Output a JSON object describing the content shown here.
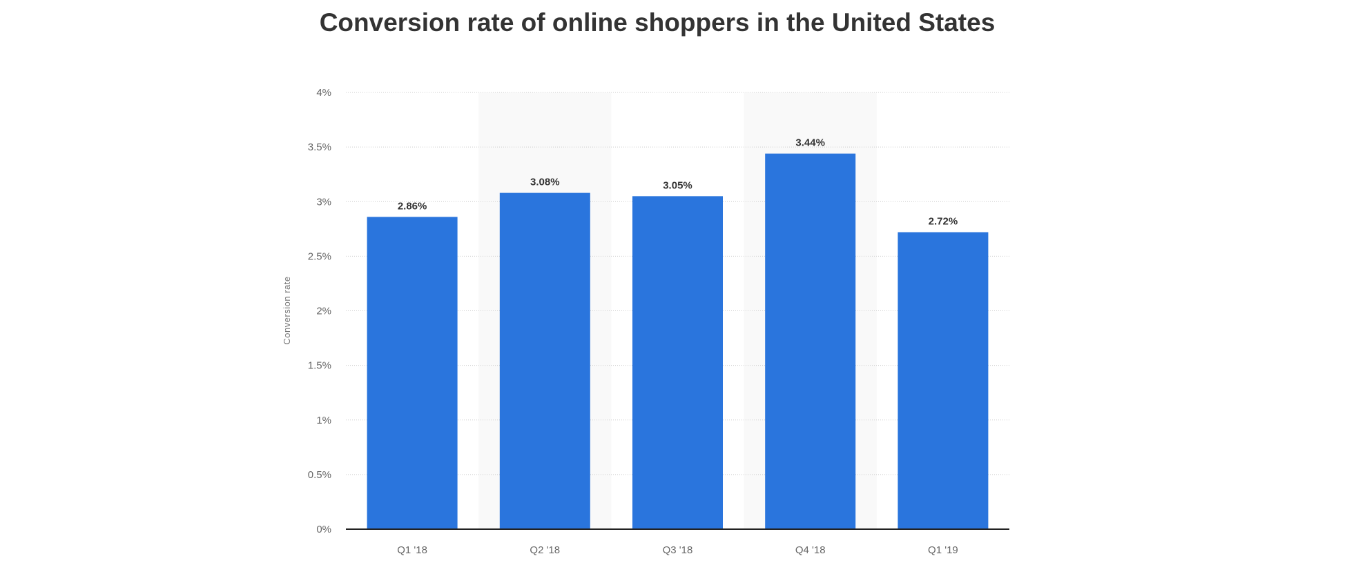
{
  "chart_data": {
    "type": "bar",
    "title": "Conversion rate of online shoppers in the United States",
    "xlabel": "",
    "ylabel": "Conversion rate",
    "categories": [
      "Q1 '18",
      "Q2 '18",
      "Q3 '18",
      "Q4 '18",
      "Q1 '19"
    ],
    "values": [
      2.86,
      3.08,
      3.05,
      3.44,
      2.72
    ],
    "data_labels": [
      "2.86%",
      "3.08%",
      "3.05%",
      "3.44%",
      "2.72%"
    ],
    "ylim": [
      0,
      4
    ],
    "yticks": [
      0,
      0.5,
      1,
      1.5,
      2,
      2.5,
      3,
      3.5,
      4
    ],
    "ytick_labels": [
      "0%",
      "0.5%",
      "1%",
      "1.5%",
      "2%",
      "2.5%",
      "3%",
      "3.5%",
      "4%"
    ],
    "grid": true,
    "bar_color": "#2a75dd",
    "band_color": "#f9f9f9"
  }
}
